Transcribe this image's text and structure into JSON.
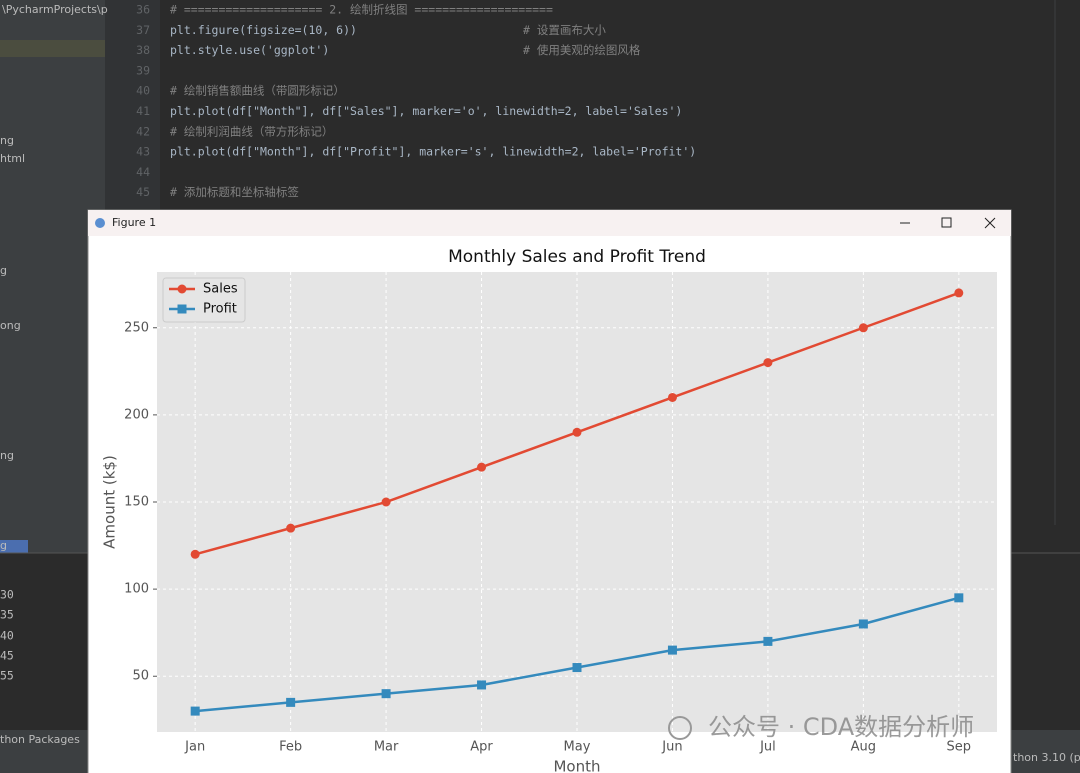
{
  "sidebar": {
    "path": "\\PycharmProjects\\p",
    "items": [
      "ng",
      "html",
      "g",
      "ong",
      "ng",
      "g"
    ]
  },
  "editor": {
    "lines": [
      {
        "number": 36,
        "code": "# ==================== 2. 绘制折线图 ===================="
      },
      {
        "number": 37,
        "code": "plt.figure(figsize=(10, 6))",
        "comment": "# 设置画布大小"
      },
      {
        "number": 38,
        "code": "plt.style.use('ggplot')",
        "comment": "# 使用美观的绘图风格"
      },
      {
        "number": 39
      },
      {
        "number": 40,
        "code": "# 绘制销售额曲线（带圆形标记）"
      },
      {
        "number": 41,
        "code": "plt.plot(df[\"Month\"], df[\"Sales\"], marker='o', linewidth=2, label='Sales')"
      },
      {
        "number": 42,
        "code": "# 绘制利润曲线（带方形标记）"
      },
      {
        "number": 43,
        "code": "plt.plot(df[\"Month\"], df[\"Profit\"], marker='s', linewidth=2, label='Profit')"
      },
      {
        "number": 44
      },
      {
        "number": 45,
        "code": "# 添加标题和坐标轴标签"
      }
    ]
  },
  "console": {
    "lines": [
      "30",
      "35",
      "40",
      "45",
      "55"
    ]
  },
  "statusbar": {
    "left": "thon Packages",
    "right": "thon 3.10 (p"
  },
  "window": {
    "title": "Figure 1"
  },
  "chart_data": {
    "type": "line",
    "title": "Monthly Sales and Profit Trend",
    "x_label": "Month",
    "y_label": "Amount (k$)",
    "categories": [
      "Jan",
      "Feb",
      "Mar",
      "Apr",
      "May",
      "Jun",
      "Jul",
      "Aug",
      "Sep"
    ],
    "series": [
      {
        "name": "Sales",
        "color": "#E24A33",
        "marker": "circle",
        "values": [
          120,
          135,
          150,
          170,
          190,
          210,
          230,
          250,
          270
        ]
      },
      {
        "name": "Profit",
        "color": "#348ABD",
        "marker": "square",
        "values": [
          30,
          35,
          40,
          45,
          55,
          65,
          70,
          80,
          95
        ]
      }
    ],
    "ylim": [
      18,
      282
    ],
    "yticks": [
      50,
      100,
      150,
      200,
      250
    ],
    "grid": true,
    "legend": "upper left"
  },
  "watermark": "公众号 · CDA数据分析师"
}
